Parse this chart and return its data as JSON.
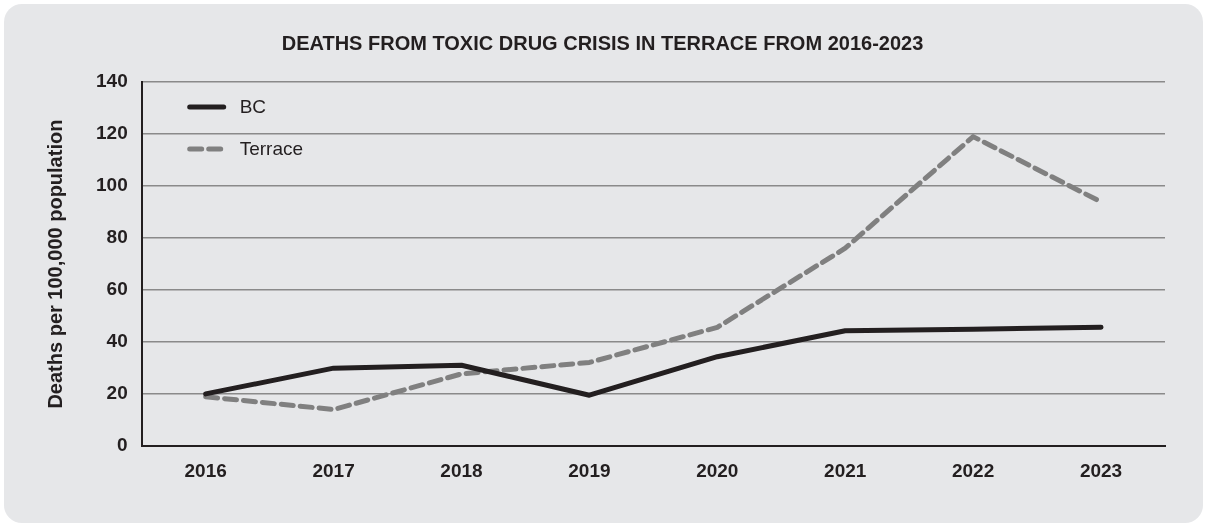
{
  "chart_data": {
    "type": "line",
    "title": "DEATHS FROM TOXIC DRUG CRISIS IN TERRACE FROM 2016-2023",
    "ylabel": "Deaths per 100,000 population",
    "categories": [
      "2016",
      "2017",
      "2018",
      "2019",
      "2020",
      "2021",
      "2022",
      "2023"
    ],
    "series": [
      {
        "name": "BC",
        "color": "#231f20",
        "line_style": "solid",
        "values": [
          20.1,
          30,
          31.1,
          19.6,
          34.4,
          44.4,
          45,
          45.7
        ]
      },
      {
        "name": "Terrace",
        "color": "#808080",
        "line_style": "dashed",
        "values": [
          19,
          14.1,
          27.8,
          32.2,
          45.7,
          76.1,
          119,
          93.9
        ]
      }
    ],
    "ylim": [
      0,
      140
    ],
    "yticks": [
      0,
      20,
      40,
      60,
      80,
      100,
      120,
      140
    ],
    "grid": "y",
    "legend": "top left",
    "marker": "none"
  }
}
